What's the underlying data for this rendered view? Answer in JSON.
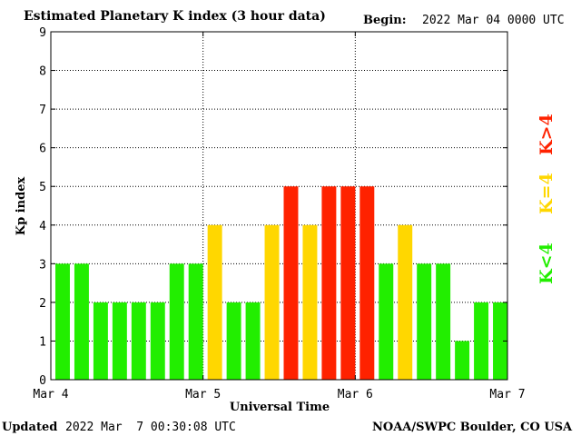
{
  "header": {
    "title": "Estimated Planetary K index (3 hour data)",
    "begin_label": "Begin:",
    "begin_value": "2022 Mar 04 0000 UTC"
  },
  "footer": {
    "updated_label": "Updated",
    "updated_value": "2022 Mar  7 00:30:08 UTC",
    "credit": "NOAA/SWPC Boulder, CO USA"
  },
  "colors": {
    "low": "#22ee00",
    "moderate": "#ffd700",
    "high": "#ff2200"
  },
  "chart_data": {
    "type": "bar",
    "title": "Estimated Planetary K index (3 hour data)",
    "xlabel": "Universal Time",
    "ylabel": "Kp index",
    "ylim": [
      0,
      9
    ],
    "yticks": [
      "0",
      "1",
      "2",
      "3",
      "4",
      "5",
      "6",
      "7",
      "8",
      "9"
    ],
    "xticks": [
      "Mar 4",
      "Mar 5",
      "Mar 6",
      "Mar 7"
    ],
    "grid": true,
    "bar_interval_hours": 3,
    "values": [
      3,
      3,
      2,
      2,
      2,
      2,
      3,
      3,
      4,
      2,
      2,
      4,
      5,
      4,
      5,
      5,
      5,
      3,
      4,
      3,
      3,
      1,
      2,
      2
    ],
    "legend": [
      {
        "label": "K<4",
        "color": "#22ee00"
      },
      {
        "label": "K=4",
        "color": "#ffd700"
      },
      {
        "label": "K>4",
        "color": "#ff2200"
      }
    ]
  }
}
